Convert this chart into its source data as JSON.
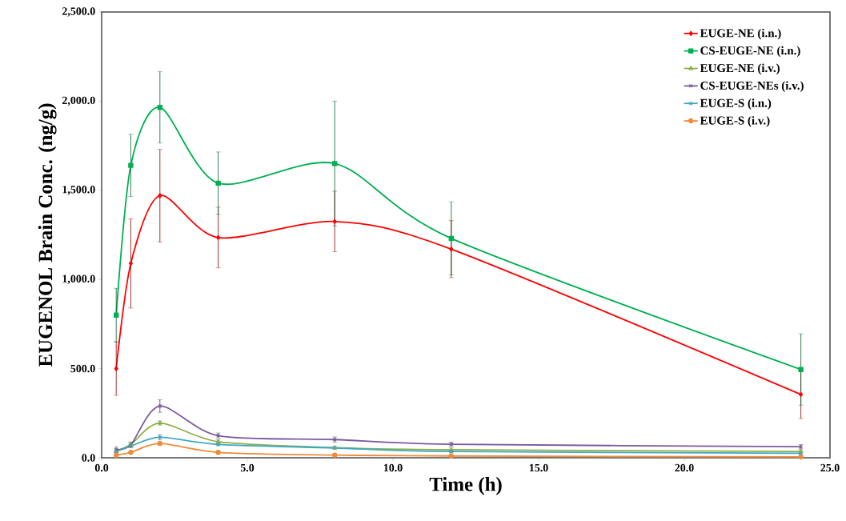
{
  "chart_data": {
    "type": "line",
    "xlabel": "Time (h)",
    "ylabel": "EUGENOL Brain Conc. (ng/g)",
    "x": [
      0.5,
      1,
      2,
      4,
      8,
      12,
      24
    ],
    "series": [
      {
        "name": "EUGE-NE (i.n.)",
        "color": "#ff0000",
        "marker": "diamond",
        "values": [
          500,
          1090,
          1470,
          1235,
          1325,
          1170,
          355
        ],
        "errors": [
          150,
          250,
          260,
          170,
          170,
          160,
          135
        ]
      },
      {
        "name": "CS-EUGE-NE (i.n.)",
        "color": "#00b050",
        "marker": "square",
        "values": [
          800,
          1640,
          1965,
          1540,
          1650,
          1230,
          495
        ],
        "errors": [
          150,
          175,
          200,
          175,
          350,
          205,
          200
        ]
      },
      {
        "name": "EUGE-NE (i.v.)",
        "color": "#8db04a",
        "marker": "triangle",
        "values": [
          40,
          75,
          195,
          90,
          57,
          45,
          35
        ],
        "errors": [
          10,
          10,
          12,
          10,
          null,
          10,
          10
        ]
      },
      {
        "name": "CS-EUGE-NEs (i.v.)",
        "color": "#7a5a9f",
        "marker": "cross",
        "values": [
          46,
          73,
          290,
          124,
          102,
          76,
          62
        ],
        "errors": [
          15,
          15,
          35,
          15,
          15,
          12,
          12
        ]
      },
      {
        "name": "EUGE-S (i.n.)",
        "color": "#3fa7c4",
        "marker": "cross",
        "values": [
          35,
          65,
          115,
          75,
          55,
          35,
          25
        ],
        "errors": [
          8,
          8,
          15,
          8,
          8,
          8,
          8
        ]
      },
      {
        "name": "EUGE-S (i.v.)",
        "color": "#f08a3a",
        "marker": "circle",
        "values": [
          15,
          30,
          80,
          30,
          15,
          10,
          5
        ]
      }
    ],
    "xlim": [
      0,
      25
    ],
    "ylim": [
      0,
      2500
    ],
    "xticks": [
      {
        "value": 0,
        "label": "0.0"
      },
      {
        "value": 5,
        "label": "5.0"
      },
      {
        "value": 10,
        "label": "10.0"
      },
      {
        "value": 15,
        "label": "15.0"
      },
      {
        "value": 20,
        "label": "20.0"
      },
      {
        "value": 25,
        "label": "25.0"
      }
    ],
    "yticks": [
      {
        "value": 0,
        "label": "0.0"
      },
      {
        "value": 500,
        "label": "500.0"
      },
      {
        "value": 1000,
        "label": "1,000.0"
      },
      {
        "value": 1500,
        "label": "1,500.0"
      },
      {
        "value": 2000,
        "label": "2,000.0"
      },
      {
        "value": 2500,
        "label": "2,500.0"
      }
    ],
    "legend": "top right",
    "grid": false,
    "line_style": "solid"
  }
}
